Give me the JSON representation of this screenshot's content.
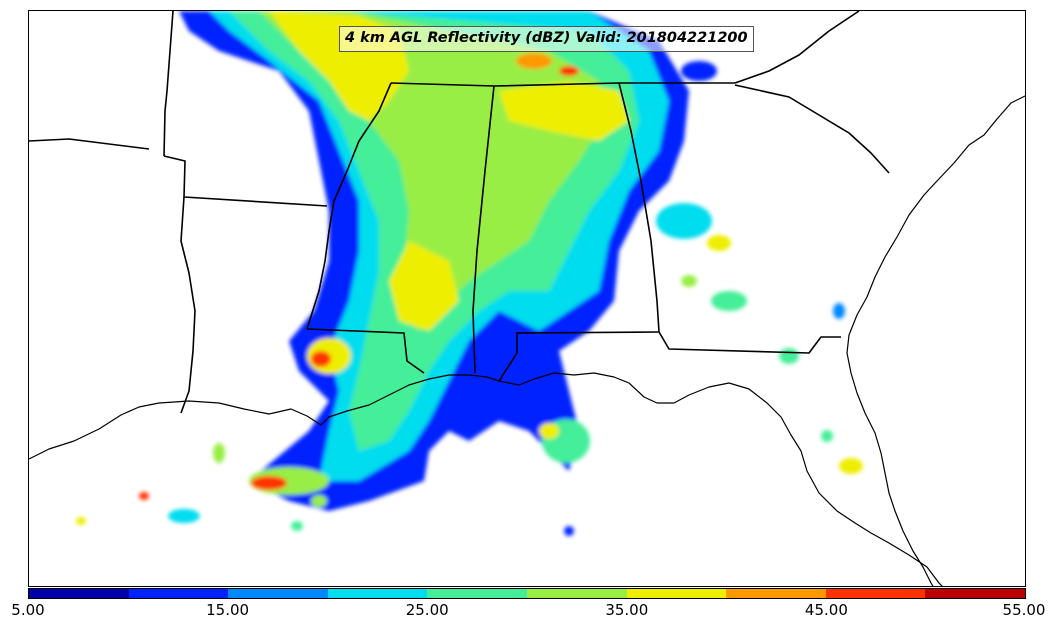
{
  "title": "4 km AGL Reflectivity (dBZ) Valid: 201804221200",
  "colorbar": {
    "colors": [
      "#0000a8",
      "#0022ff",
      "#0088ff",
      "#00ddee",
      "#44ee99",
      "#99ee44",
      "#eeee00",
      "#ff9900",
      "#ff3300",
      "#bb0000"
    ],
    "tick_labels": [
      "5.00",
      "15.00",
      "25.00",
      "35.00",
      "45.00",
      "55.00"
    ],
    "min": 5,
    "max": 55,
    "unit": "dBZ"
  },
  "map": {
    "region": "Southeastern United States",
    "land_color": "#ffffff",
    "boundary_color": "#000000"
  }
}
